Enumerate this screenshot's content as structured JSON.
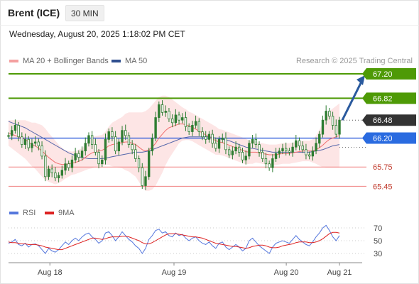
{
  "header": {
    "instrument": "Brent (ICE)",
    "timeframe": "30 MIN",
    "datetime": "Wednesday, August 20, 2025 1:18:02 PM CET"
  },
  "legend": {
    "bollinger_label": "MA 20 + Bollinger Bands",
    "ma50_label": "MA 50",
    "copyright": "Research © 2025 Trading Central",
    "rsi_label": "RSI",
    "rsi_ma_label": "9MA"
  },
  "colors": {
    "green_level": "#4e9a06",
    "blue_level": "#1f4fd8",
    "red_level": "#f08080",
    "current_tag": "#333333",
    "arrow": "#2a5a9e",
    "candle": "#2e7d32",
    "band_fill": "#fde0e0",
    "ma20": "#f07070",
    "ma50": "#5566aa",
    "rsi": "#5577dd",
    "rsi_ma": "#dd2222"
  },
  "chart_data": [
    {
      "type": "candlestick",
      "x_labels": [
        "Aug 18",
        "Aug 19",
        "Aug 20",
        "Aug 21"
      ],
      "ylim": [
        65.2,
        67.3
      ],
      "levels": [
        {
          "value": 67.2,
          "label": "67.20",
          "kind": "resistance"
        },
        {
          "value": 66.82,
          "label": "66.82",
          "kind": "resistance"
        },
        {
          "value": 66.48,
          "label": "66.48",
          "kind": "current"
        },
        {
          "value": 66.2,
          "label": "66.20",
          "kind": "pivot"
        },
        {
          "value": 65.75,
          "label": "65.75",
          "kind": "support"
        },
        {
          "value": 65.45,
          "label": "65.45",
          "kind": "support"
        }
      ],
      "close_series": [
        66.24,
        66.32,
        66.4,
        66.22,
        66.1,
        66.18,
        66.05,
        66.12,
        66.14,
        66.08,
        65.92,
        65.6,
        65.72,
        65.66,
        65.58,
        65.62,
        65.7,
        65.8,
        65.74,
        65.86,
        65.96,
        65.9,
        66.0,
        66.12,
        66.24,
        66.1,
        65.98,
        65.8,
        65.86,
        66.18,
        66.3,
        66.22,
        66.0,
        66.14,
        66.32,
        66.24,
        66.1,
        66.02,
        65.88,
        65.74,
        65.46,
        65.6,
        66.0,
        66.2,
        66.52,
        66.72,
        66.6,
        66.62,
        66.5,
        66.44,
        66.56,
        66.48,
        66.52,
        66.38,
        66.3,
        66.4,
        66.46,
        66.3,
        66.22,
        66.18,
        66.26,
        66.12,
        66.04,
        66.18,
        66.2,
        66.02,
        65.94,
        66.0,
        66.06,
        65.98,
        65.86,
        65.92,
        66.12,
        66.18,
        66.1,
        65.98,
        65.88,
        65.8,
        65.74,
        65.88,
        65.96,
        66.0,
        66.04,
        66.0,
        65.98,
        66.06,
        66.16,
        66.08,
        66.02,
        65.94,
        65.92,
        66.0,
        66.12,
        66.26,
        66.48,
        66.62,
        66.54,
        66.4,
        66.26,
        66.48
      ],
      "ma20_series": [
        66.28,
        66.26,
        66.24,
        66.22,
        66.2,
        66.18,
        66.14,
        66.1,
        66.08,
        66.04,
        66.0,
        65.95,
        65.9,
        65.86,
        65.82,
        65.8,
        65.79,
        65.79,
        65.8,
        65.81,
        65.82,
        65.84,
        65.86,
        65.9,
        65.94,
        65.97,
        65.99,
        66.0,
        66.01,
        66.04,
        66.08,
        66.1,
        66.11,
        66.12,
        66.13,
        66.14,
        66.14,
        66.12,
        66.1,
        66.06,
        66.02,
        66.0,
        66.02,
        66.06,
        66.12,
        66.2,
        66.26,
        66.32,
        66.36,
        66.38,
        66.4,
        66.42,
        66.42,
        66.41,
        66.39,
        66.37,
        66.34,
        66.31,
        66.28,
        66.25,
        66.22,
        66.19,
        66.16,
        66.14,
        66.13,
        66.11,
        66.09,
        66.07,
        66.05,
        66.03,
        66.01,
        65.99,
        65.98,
        65.98,
        65.98,
        65.97,
        65.96,
        65.95,
        65.94,
        65.94,
        65.94,
        65.95,
        65.96,
        65.96,
        65.96,
        65.97,
        65.98,
        65.99,
        66.0,
        66.0,
        66.0,
        66.0,
        66.02,
        66.05,
        66.09,
        66.14,
        66.18,
        66.2,
        66.22,
        66.24
      ],
      "band_width": [
        0.2,
        0.22,
        0.24,
        0.26,
        0.28,
        0.3,
        0.32,
        0.34,
        0.36,
        0.38,
        0.4,
        0.4,
        0.38,
        0.36,
        0.34,
        0.3,
        0.26,
        0.22,
        0.2,
        0.18,
        0.18,
        0.18,
        0.18,
        0.2,
        0.22,
        0.24,
        0.24,
        0.24,
        0.24,
        0.26,
        0.3,
        0.34,
        0.36,
        0.38,
        0.4,
        0.44,
        0.46,
        0.48,
        0.5,
        0.54,
        0.58,
        0.62,
        0.64,
        0.66,
        0.66,
        0.64,
        0.6,
        0.54,
        0.48,
        0.42,
        0.36,
        0.3,
        0.26,
        0.24,
        0.22,
        0.22,
        0.22,
        0.22,
        0.22,
        0.22,
        0.22,
        0.22,
        0.22,
        0.2,
        0.2,
        0.2,
        0.2,
        0.2,
        0.2,
        0.2,
        0.2,
        0.2,
        0.18,
        0.18,
        0.16,
        0.16,
        0.16,
        0.16,
        0.16,
        0.16,
        0.16,
        0.16,
        0.16,
        0.16,
        0.16,
        0.16,
        0.16,
        0.16,
        0.16,
        0.16,
        0.16,
        0.18,
        0.22,
        0.28,
        0.34,
        0.4,
        0.44,
        0.46,
        0.48,
        0.5
      ],
      "ma50_series": [
        66.46,
        66.44,
        66.42,
        66.4,
        66.38,
        66.36,
        66.33,
        66.3,
        66.27,
        66.24,
        66.21,
        66.18,
        66.15,
        66.12,
        66.09,
        66.06,
        66.03,
        66.0,
        65.97,
        65.95,
        65.93,
        65.91,
        65.9,
        65.89,
        65.88,
        65.88,
        65.88,
        65.88,
        65.88,
        65.89,
        65.9,
        65.91,
        65.92,
        65.93,
        65.94,
        65.95,
        65.96,
        65.97,
        65.98,
        65.98,
        65.98,
        65.99,
        66.0,
        66.02,
        66.04,
        66.06,
        66.08,
        66.1,
        66.12,
        66.14,
        66.16,
        66.18,
        66.2,
        66.21,
        66.22,
        66.22,
        66.22,
        66.22,
        66.22,
        66.22,
        66.22,
        66.21,
        66.2,
        66.19,
        66.18,
        66.17,
        66.16,
        66.14,
        66.12,
        66.1,
        66.08,
        66.06,
        66.05,
        66.04,
        66.03,
        66.02,
        66.01,
        66.0,
        65.99,
        65.98,
        65.98,
        65.98,
        65.98,
        65.98,
        65.98,
        65.98,
        65.98,
        65.98,
        65.98,
        65.98,
        65.98,
        65.99,
        66.0,
        66.01,
        66.02,
        66.04,
        66.06,
        66.08,
        66.09,
        66.1
      ],
      "projection": {
        "from": 66.48,
        "to": 67.2
      }
    },
    {
      "type": "line",
      "series_names": [
        "RSI",
        "9MA"
      ],
      "ylim": [
        20,
        80
      ],
      "tick_labels": [
        "70",
        "50",
        "30"
      ],
      "ticks": [
        70,
        50,
        30
      ],
      "rsi_series": [
        46,
        48,
        52,
        44,
        42,
        46,
        40,
        44,
        45,
        42,
        36,
        30,
        38,
        34,
        32,
        36,
        42,
        48,
        44,
        50,
        54,
        50,
        56,
        60,
        62,
        56,
        52,
        46,
        50,
        62,
        64,
        58,
        50,
        56,
        64,
        58,
        52,
        48,
        42,
        38,
        30,
        38,
        52,
        58,
        66,
        68,
        62,
        64,
        58,
        56,
        62,
        58,
        60,
        54,
        50,
        54,
        56,
        50,
        46,
        44,
        48,
        42,
        38,
        46,
        48,
        40,
        36,
        40,
        44,
        40,
        34,
        38,
        50,
        54,
        48,
        42,
        38,
        34,
        30,
        40,
        46,
        48,
        50,
        48,
        46,
        52,
        58,
        52,
        48,
        44,
        42,
        48,
        56,
        62,
        70,
        74,
        66,
        56,
        50,
        58
      ],
      "rsi_ma_series": [
        48,
        47,
        47,
        46,
        45,
        45,
        44,
        44,
        44,
        43,
        42,
        40,
        39,
        38,
        37,
        36,
        36,
        38,
        40,
        42,
        44,
        46,
        48,
        50,
        52,
        54,
        54,
        53,
        52,
        53,
        55,
        56,
        56,
        56,
        57,
        57,
        56,
        54,
        52,
        50,
        47,
        45,
        45,
        47,
        50,
        53,
        56,
        59,
        61,
        61,
        61,
        60,
        59,
        58,
        57,
        56,
        56,
        55,
        54,
        52,
        50,
        48,
        46,
        45,
        44,
        43,
        42,
        41,
        41,
        40,
        39,
        38,
        39,
        41,
        42,
        43,
        43,
        42,
        40,
        39,
        39,
        40,
        42,
        43,
        44,
        45,
        47,
        48,
        48,
        48,
        47,
        47,
        48,
        50,
        53,
        57,
        61,
        63,
        63,
        62
      ]
    }
  ],
  "x_axis": {
    "labels": [
      "Aug 18",
      "Aug 19",
      "Aug 20",
      "Aug 21"
    ],
    "label_index": [
      7,
      28,
      47,
      56
    ]
  }
}
